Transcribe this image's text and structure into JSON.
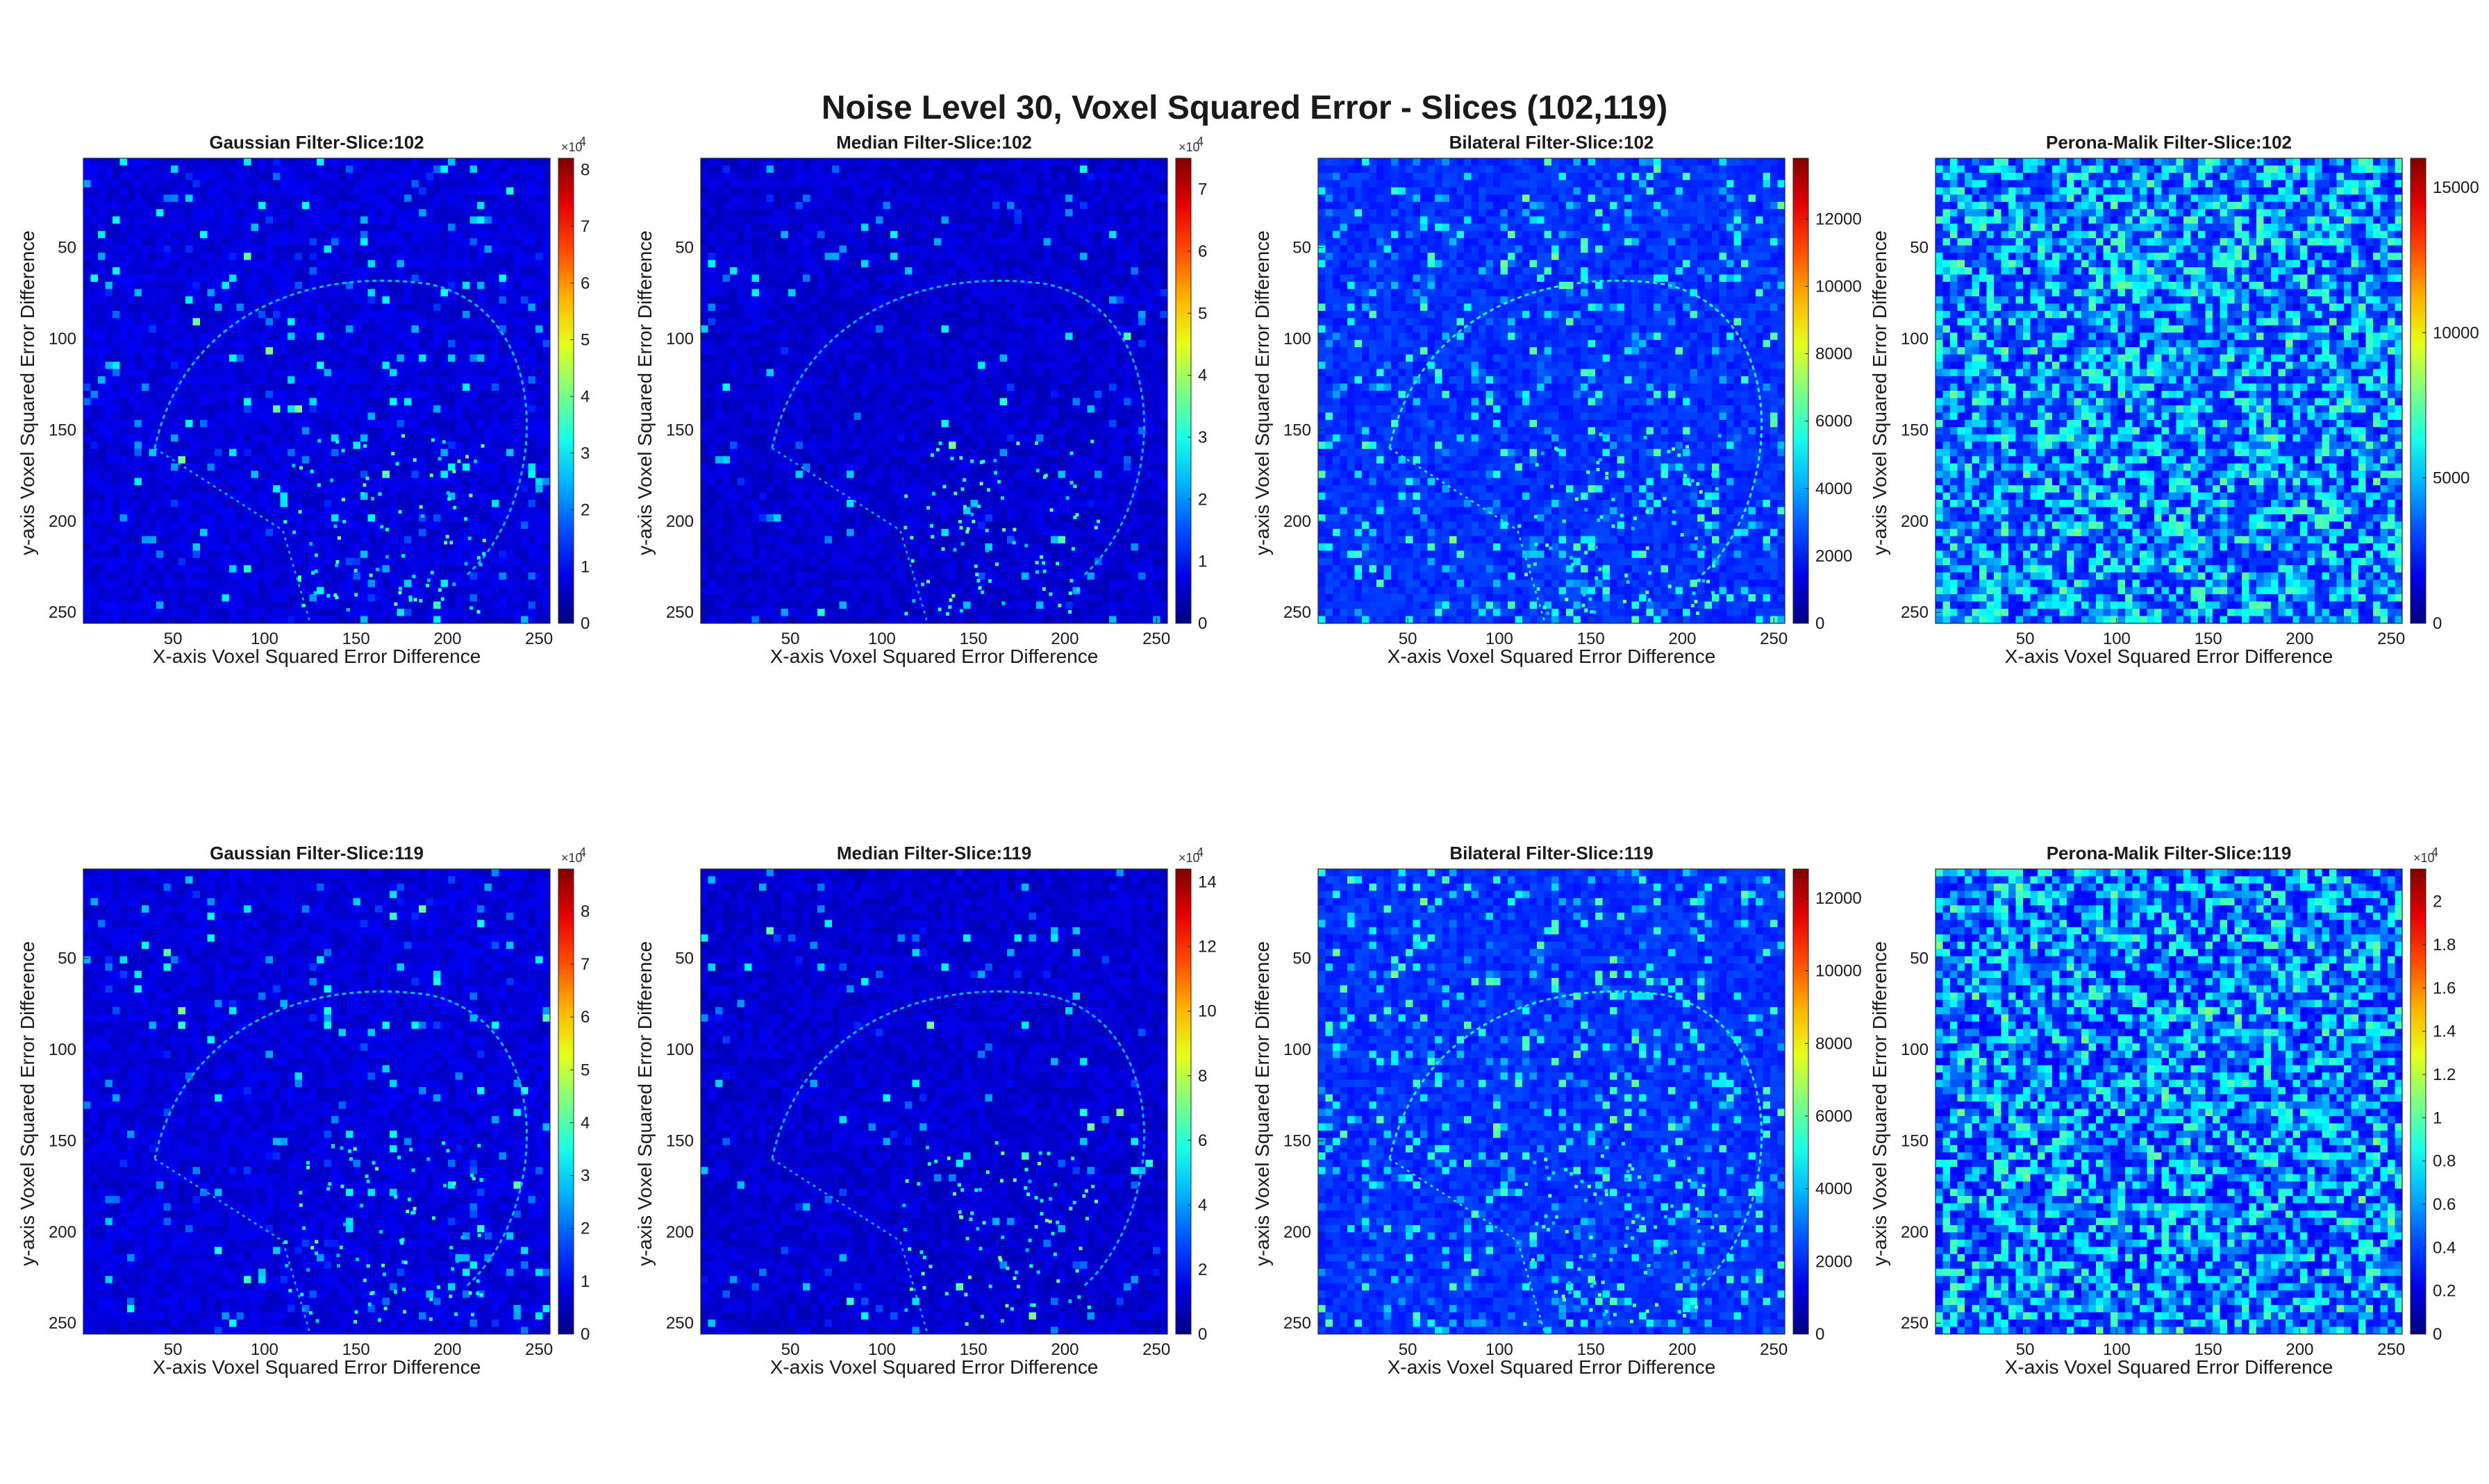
{
  "figure": {
    "title": "Noise Level 30, Voxel Squared Error - Slices (102,119)"
  },
  "chart_data": [
    {
      "type": "heatmap",
      "title": "Gaussian Filter-Slice:102",
      "xlabel": "X-axis Voxel Squared Error Difference",
      "ylabel": "y-axis Voxel Squared Error Difference",
      "x_ticks": [
        50,
        100,
        150,
        200,
        250
      ],
      "y_ticks": [
        50,
        100,
        150,
        200,
        250
      ],
      "axis_range": [
        1,
        256
      ],
      "colormap": "jet",
      "background_level": 0.09,
      "noise_density": 0.05,
      "structure_visible": true,
      "colorbar": {
        "min": 0,
        "max": 8.2,
        "ticks": [
          0,
          1,
          2,
          3,
          4,
          5,
          6,
          7,
          8
        ],
        "tick_labels": [
          "0",
          "1",
          "2",
          "3",
          "4",
          "5",
          "6",
          "7",
          "8"
        ],
        "multiplier": "×10",
        "exponent": "4"
      }
    },
    {
      "type": "heatmap",
      "title": "Median Filter-Slice:102",
      "xlabel": "X-axis Voxel Squared Error Difference",
      "ylabel": "y-axis Voxel Squared Error Difference",
      "x_ticks": [
        50,
        100,
        150,
        200,
        250
      ],
      "y_ticks": [
        50,
        100,
        150,
        200,
        250
      ],
      "axis_range": [
        1,
        256
      ],
      "colormap": "jet",
      "background_level": 0.08,
      "noise_density": 0.03,
      "structure_visible": true,
      "colorbar": {
        "min": 0,
        "max": 7.5,
        "ticks": [
          0,
          1,
          2,
          3,
          4,
          5,
          6,
          7
        ],
        "tick_labels": [
          "0",
          "1",
          "2",
          "3",
          "4",
          "5",
          "6",
          "7"
        ],
        "multiplier": "×10",
        "exponent": "4"
      }
    },
    {
      "type": "heatmap",
      "title": "Bilateral Filter-Slice:102",
      "xlabel": "X-axis Voxel Squared Error Difference",
      "ylabel": "y-axis Voxel Squared Error Difference",
      "x_ticks": [
        50,
        100,
        150,
        200,
        250
      ],
      "y_ticks": [
        50,
        100,
        150,
        200,
        250
      ],
      "axis_range": [
        1,
        256
      ],
      "colormap": "jet",
      "background_level": 0.17,
      "noise_density": 0.12,
      "structure_visible": true,
      "colorbar": {
        "min": 0,
        "max": 13800,
        "ticks": [
          0,
          2000,
          4000,
          6000,
          8000,
          10000,
          12000
        ],
        "tick_labels": [
          "0",
          "2000",
          "4000",
          "6000",
          "8000",
          "10000",
          "12000"
        ],
        "multiplier": "",
        "exponent": ""
      }
    },
    {
      "type": "heatmap",
      "title": "Perona-Malik Filter-Slice:102",
      "xlabel": "X-axis Voxel Squared Error Difference",
      "ylabel": "y-axis Voxel Squared Error Difference",
      "x_ticks": [
        50,
        100,
        150,
        200,
        250
      ],
      "y_ticks": [
        50,
        100,
        150,
        200,
        250
      ],
      "axis_range": [
        1,
        256
      ],
      "colormap": "jet",
      "background_level": 0.16,
      "noise_density": 0.55,
      "structure_visible": false,
      "colorbar": {
        "min": 0,
        "max": 16000,
        "ticks": [
          0,
          5000,
          10000,
          15000
        ],
        "tick_labels": [
          "0",
          "5000",
          "10000",
          "15000"
        ],
        "multiplier": "",
        "exponent": ""
      }
    },
    {
      "type": "heatmap",
      "title": "Gaussian Filter-Slice:119",
      "xlabel": "X-axis Voxel Squared Error Difference",
      "ylabel": "y-axis Voxel Squared Error Difference",
      "x_ticks": [
        50,
        100,
        150,
        200,
        250
      ],
      "y_ticks": [
        50,
        100,
        150,
        200,
        250
      ],
      "axis_range": [
        1,
        256
      ],
      "colormap": "jet",
      "background_level": 0.09,
      "noise_density": 0.05,
      "structure_visible": true,
      "colorbar": {
        "min": 0,
        "max": 8.8,
        "ticks": [
          0,
          1,
          2,
          3,
          4,
          5,
          6,
          7,
          8
        ],
        "tick_labels": [
          "0",
          "1",
          "2",
          "3",
          "4",
          "5",
          "6",
          "7",
          "8"
        ],
        "multiplier": "×10",
        "exponent": "4"
      }
    },
    {
      "type": "heatmap",
      "title": "Median Filter-Slice:119",
      "xlabel": "X-axis Voxel Squared Error Difference",
      "ylabel": "y-axis Voxel Squared Error Difference",
      "x_ticks": [
        50,
        100,
        150,
        200,
        250
      ],
      "y_ticks": [
        50,
        100,
        150,
        200,
        250
      ],
      "axis_range": [
        1,
        256
      ],
      "colormap": "jet",
      "background_level": 0.08,
      "noise_density": 0.03,
      "structure_visible": true,
      "colorbar": {
        "min": 0,
        "max": 14.4,
        "ticks": [
          0,
          2,
          4,
          6,
          8,
          10,
          12,
          14
        ],
        "tick_labels": [
          "0",
          "2",
          "4",
          "6",
          "8",
          "10",
          "12",
          "14"
        ],
        "multiplier": "×10",
        "exponent": "4"
      }
    },
    {
      "type": "heatmap",
      "title": "Bilateral Filter-Slice:119",
      "xlabel": "X-axis Voxel Squared Error Difference",
      "ylabel": "y-axis Voxel Squared Error Difference",
      "x_ticks": [
        50,
        100,
        150,
        200,
        250
      ],
      "y_ticks": [
        50,
        100,
        150,
        200,
        250
      ],
      "axis_range": [
        1,
        256
      ],
      "colormap": "jet",
      "background_level": 0.17,
      "noise_density": 0.12,
      "structure_visible": true,
      "colorbar": {
        "min": 0,
        "max": 12800,
        "ticks": [
          0,
          2000,
          4000,
          6000,
          8000,
          10000,
          12000
        ],
        "tick_labels": [
          "0",
          "2000",
          "4000",
          "6000",
          "8000",
          "10000",
          "12000"
        ],
        "multiplier": "",
        "exponent": ""
      }
    },
    {
      "type": "heatmap",
      "title": "Perona-Malik Filter-Slice:119",
      "xlabel": "X-axis Voxel Squared Error Difference",
      "ylabel": "y-axis Voxel Squared Error Difference",
      "x_ticks": [
        50,
        100,
        150,
        200,
        250
      ],
      "y_ticks": [
        50,
        100,
        150,
        200,
        250
      ],
      "axis_range": [
        1,
        256
      ],
      "colormap": "jet",
      "background_level": 0.15,
      "noise_density": 0.55,
      "structure_visible": false,
      "colorbar": {
        "min": 0,
        "max": 2.15,
        "ticks": [
          0,
          0.2,
          0.4,
          0.6,
          0.8,
          1,
          1.2,
          1.4,
          1.6,
          1.8,
          2
        ],
        "tick_labels": [
          "0",
          "0.2",
          "0.4",
          "0.6",
          "0.8",
          "1",
          "1.2",
          "1.4",
          "1.6",
          "1.8",
          "2"
        ],
        "multiplier": "×10",
        "exponent": "4"
      }
    }
  ]
}
